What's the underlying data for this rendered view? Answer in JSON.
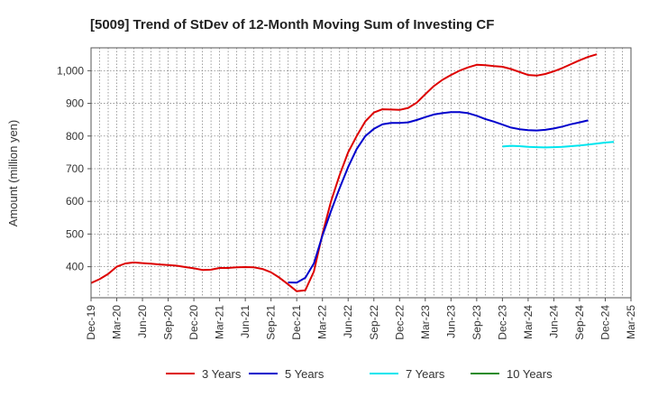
{
  "chart_data": {
    "type": "line",
    "title": "[5009]  Trend of StDev of 12-Month Moving Sum of Investing CF",
    "ylabel": "Amount (million yen)",
    "xlabel": "",
    "ylim": [
      305,
      1070
    ],
    "yticks": [
      400,
      500,
      600,
      700,
      800,
      900,
      1000
    ],
    "ytick_labels": [
      "400",
      "500",
      "600",
      "700",
      "800",
      "900",
      "1,000"
    ],
    "xlim": [
      "2019-12",
      "2025-03"
    ],
    "xtick_labels": [
      "Dec-19",
      "Mar-20",
      "Jun-20",
      "Sep-20",
      "Dec-20",
      "Mar-21",
      "Jun-21",
      "Sep-21",
      "Dec-21",
      "Mar-22",
      "Jun-22",
      "Sep-22",
      "Dec-22",
      "Mar-23",
      "Jun-23",
      "Sep-23",
      "Dec-23",
      "Mar-24",
      "Jun-24",
      "Sep-24",
      "Dec-24",
      "Mar-25"
    ],
    "grid": true,
    "legend_position": "bottom",
    "series": [
      {
        "name": "3 Years",
        "color": "#dd0000",
        "start": "2019-12",
        "values": [
          350,
          362,
          378,
          400,
          410,
          413,
          411,
          409,
          407,
          405,
          403,
          399,
          395,
          390,
          391,
          396,
          396,
          398,
          399,
          398,
          393,
          383,
          366,
          346,
          325,
          328,
          385,
          500,
          600,
          680,
          750,
          800,
          845,
          872,
          882,
          881,
          880,
          886,
          902,
          928,
          953,
          972,
          987,
          1000,
          1010,
          1018,
          1017,
          1014,
          1012,
          1005,
          996,
          987,
          985,
          990,
          998,
          1008,
          1020,
          1032,
          1042,
          1050
        ]
      },
      {
        "name": "5 Years",
        "color": "#0000cc",
        "start": "2021-11",
        "values": [
          352,
          351,
          366,
          410,
          495,
          570,
          640,
          705,
          760,
          800,
          822,
          836,
          840,
          840,
          842,
          849,
          858,
          866,
          870,
          873,
          873,
          870,
          862,
          852,
          844,
          835,
          826,
          821,
          818,
          817,
          819,
          823,
          829,
          836,
          842,
          848
        ]
      },
      {
        "name": "7 Years",
        "color": "#00e5ee",
        "start": "2023-12",
        "values": [
          768,
          770,
          769,
          767,
          766,
          765,
          766,
          767,
          769,
          771,
          774,
          777,
          780,
          782
        ]
      },
      {
        "name": "10 Years",
        "color": "#228b22",
        "start": "2019-12",
        "values": []
      }
    ]
  }
}
